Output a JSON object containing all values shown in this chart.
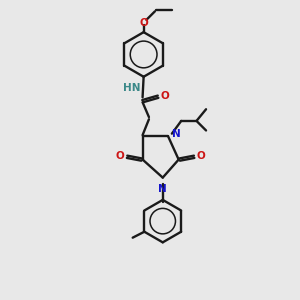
{
  "bg_color": "#e8e8e8",
  "bond_color": "#1a1a1a",
  "N_color": "#1515cc",
  "O_color": "#cc1515",
  "NH_color": "#3a8888",
  "lw": 1.7,
  "fs": 7.5,
  "xlim": [
    -0.5,
    9.5
  ],
  "ylim": [
    -0.5,
    13.5
  ]
}
